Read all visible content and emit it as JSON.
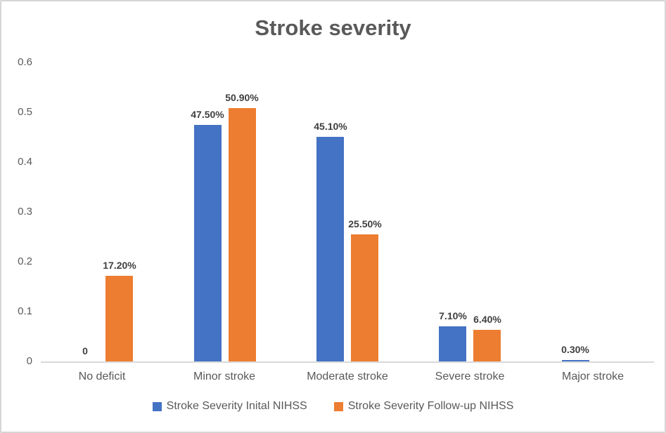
{
  "chart": {
    "title": "Stroke severity"
  },
  "chart_data": {
    "type": "bar",
    "title": "Stroke severity",
    "categories": [
      "No deficit",
      "Minor stroke",
      "Moderate stroke",
      "Severe stroke",
      "Major stroke"
    ],
    "series": [
      {
        "name": "Stroke Severity Inital NIHSS",
        "color": "#4472C4",
        "values": [
          0,
          0.475,
          0.451,
          0.071,
          0.003
        ],
        "labels": [
          "0",
          "47.50%",
          "45.10%",
          "7.10%",
          "0.30%"
        ]
      },
      {
        "name": "Stroke Severity Follow-up NIHSS",
        "color": "#ED7D31",
        "values": [
          0.172,
          0.509,
          0.255,
          0.064,
          null
        ],
        "labels": [
          "17.20%",
          "50.90%",
          "25.50%",
          "6.40%",
          null
        ]
      }
    ],
    "y_ticks": [
      0,
      0.1,
      0.2,
      0.3,
      0.4,
      0.5,
      0.6
    ],
    "y_tick_labels": [
      "0",
      "0.1",
      "0.2",
      "0.3",
      "0.4",
      "0.5",
      "0.6"
    ],
    "ylim": [
      0,
      0.6
    ],
    "xlabel": "",
    "ylabel": "",
    "grid": false,
    "data_labels": true,
    "legend_position": "bottom",
    "colors": {
      "series_initial": "#4472C4",
      "series_followup": "#ED7D31",
      "axis_line": "#D9D9D9",
      "frame_border": "#D6D6D6",
      "title_text": "#595959",
      "axis_text": "#595959",
      "data_label_text": "#3F3F3F"
    }
  }
}
